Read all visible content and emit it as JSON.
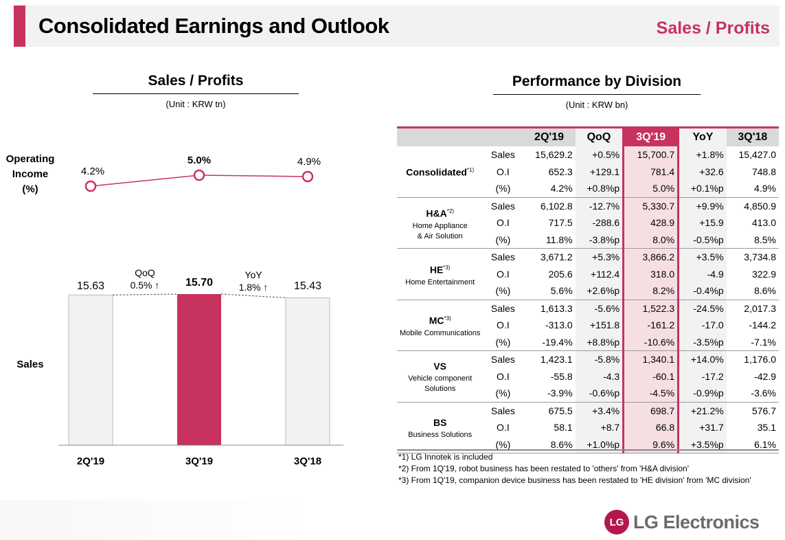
{
  "header": {
    "title": "Consolidated Earnings and Outlook",
    "section": "Sales / Profits"
  },
  "left": {
    "title": "Sales / Profits",
    "unit": "(Unit : KRW tn)"
  },
  "right": {
    "title": "Performance by Division",
    "unit": "(Unit : KRW bn)"
  },
  "chart_data": [
    {
      "type": "line",
      "ylabel": "Operating Income (%)",
      "label_lines": [
        "Operating",
        "Income",
        "(%)"
      ],
      "categories": [
        "2Q'19",
        "3Q'19",
        "3Q'18"
      ],
      "values": [
        4.2,
        5.0,
        4.9
      ],
      "labels": [
        "4.2%",
        "5.0%",
        "4.9%"
      ],
      "color": "#c8325f"
    },
    {
      "type": "bar",
      "ylabel": "Sales",
      "categories": [
        "2Q'19",
        "3Q'19",
        "3Q'18"
      ],
      "values": [
        15.63,
        15.7,
        15.43
      ],
      "labels": [
        "15.63",
        "15.70",
        "15.43"
      ],
      "colors": [
        "#f2f2f2",
        "#c8325f",
        "#f2f2f2"
      ],
      "annotations": [
        {
          "title": "QoQ",
          "text": "0.5% ↑"
        },
        {
          "title": "YoY",
          "text": "1.8% ↑"
        }
      ]
    }
  ],
  "table": {
    "columns": [
      "2Q'19",
      "QoQ",
      "3Q'19",
      "YoY",
      "3Q'18"
    ],
    "row_labels": [
      "Sales",
      "O.I",
      "(%)"
    ],
    "groups": [
      {
        "name": "Consolidated",
        "note": "*1)",
        "sub": "",
        "rows": [
          [
            "15,629.2",
            "+0.5%",
            "15,700.7",
            "+1.8%",
            "15,427.0"
          ],
          [
            "652.3",
            "+129.1",
            "781.4",
            "+32.6",
            "748.8"
          ],
          [
            "4.2%",
            "+0.8%p",
            "5.0%",
            "+0.1%p",
            "4.9%"
          ]
        ]
      },
      {
        "name": "H&A",
        "note": "*2)",
        "sub": "Home Appliance\n& Air Solution",
        "rows": [
          [
            "6,102.8",
            "-12.7%",
            "5,330.7",
            "+9.9%",
            "4,850.9"
          ],
          [
            "717.5",
            "-288.6",
            "428.9",
            "+15.9",
            "413.0"
          ],
          [
            "11.8%",
            "-3.8%p",
            "8.0%",
            "-0.5%p",
            "8.5%"
          ]
        ]
      },
      {
        "name": "HE",
        "note": "*3)",
        "sub": "Home Entertainment",
        "rows": [
          [
            "3,671.2",
            "+5.3%",
            "3,866.2",
            "+3.5%",
            "3,734.8"
          ],
          [
            "205.6",
            "+112.4",
            "318.0",
            "-4.9",
            "322.9"
          ],
          [
            "5.6%",
            "+2.6%p",
            "8.2%",
            "-0.4%p",
            "8.6%"
          ]
        ]
      },
      {
        "name": "MC",
        "note": "*3)",
        "sub": "Mobile Communications",
        "rows": [
          [
            "1,613.3",
            "-5.6%",
            "1,522.3",
            "-24.5%",
            "2,017.3"
          ],
          [
            "-313.0",
            "+151.8",
            "-161.2",
            "-17.0",
            "-144.2"
          ],
          [
            "-19.4%",
            "+8.8%p",
            "-10.6%",
            "-3.5%p",
            "-7.1%"
          ]
        ]
      },
      {
        "name": "VS",
        "note": "",
        "sub": "Vehicle component\nSolutions",
        "rows": [
          [
            "1,423.1",
            "-5.8%",
            "1,340.1",
            "+14.0%",
            "1,176.0"
          ],
          [
            "-55.8",
            "-4.3",
            "-60.1",
            "-17.2",
            "-42.9"
          ],
          [
            "-3.9%",
            "-0.6%p",
            "-4.5%",
            "-0.9%p",
            "-3.6%"
          ]
        ]
      },
      {
        "name": "BS",
        "note": "",
        "sub": "Business Solutions",
        "rows": [
          [
            "675.5",
            "+3.4%",
            "698.7",
            "+21.2%",
            "576.7"
          ],
          [
            "58.1",
            "+8.7",
            "66.8",
            "+31.7",
            "35.1"
          ],
          [
            "8.6%",
            "+1.0%p",
            "9.6%",
            "+3.5%p",
            "6.1%"
          ]
        ]
      }
    ]
  },
  "notes": [
    "*1) LG Innotek is included",
    "*2) From 1Q'19, robot business has been restated to 'others' from 'H&A division'",
    "*3) From 1Q'19, companion device business has been restated to 'HE division' from 'MC division'"
  ],
  "logo": {
    "text": "LG Electronics",
    "mark": "LG"
  }
}
